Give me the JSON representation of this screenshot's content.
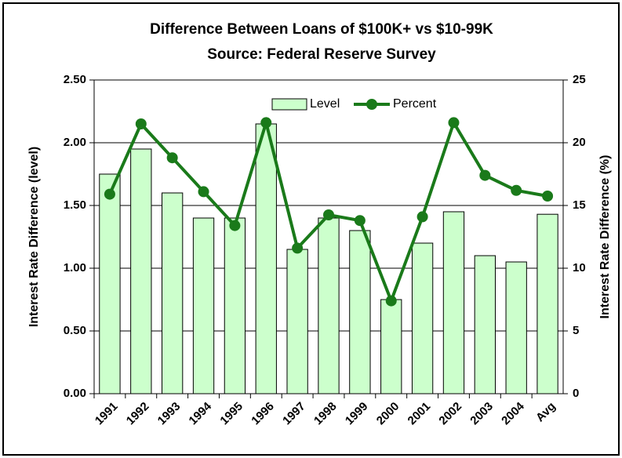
{
  "chart_data": {
    "type": "bar_line",
    "title": "Difference Between Loans of $100K+ vs $10-99K",
    "subtitle": "Source: Federal Reserve Survey",
    "y_label": "Interest Rate Difference (level)",
    "y2_label": "Interest Rate Difference (%)",
    "categories": [
      "1991",
      "1992",
      "1993",
      "1994",
      "1995",
      "1996",
      "1997",
      "1998",
      "1999",
      "2000",
      "2001",
      "2002",
      "2003",
      "2004",
      "Avg"
    ],
    "series": [
      {
        "name": "Level",
        "type": "bar",
        "color": "#ccffcc",
        "values": [
          1.75,
          1.95,
          1.6,
          1.4,
          1.4,
          2.15,
          1.15,
          1.4,
          1.3,
          0.75,
          1.2,
          1.45,
          1.1,
          1.05,
          1.43
        ]
      },
      {
        "name": "Percent",
        "type": "line",
        "axis": "y2",
        "color": "#1a7a1a",
        "values": [
          15.9,
          21.5,
          18.8,
          16.1,
          13.4,
          21.6,
          11.6,
          14.25,
          13.8,
          7.4,
          14.1,
          21.6,
          17.4,
          16.2,
          15.75
        ]
      }
    ],
    "ylim": [
      0,
      2.5
    ],
    "yticks": [
      {
        "value": 0,
        "label": "0.00"
      },
      {
        "value": 0.5,
        "label": "0.50"
      },
      {
        "value": 1,
        "label": "1.00"
      },
      {
        "value": 1.5,
        "label": "1.50"
      },
      {
        "value": 2,
        "label": "2.00"
      },
      {
        "value": 2.5,
        "label": "2.50"
      }
    ],
    "y2lim": [
      0,
      25
    ],
    "y2ticks": [
      0,
      5,
      10,
      15,
      20,
      25
    ],
    "grid": true,
    "legend": "top"
  }
}
